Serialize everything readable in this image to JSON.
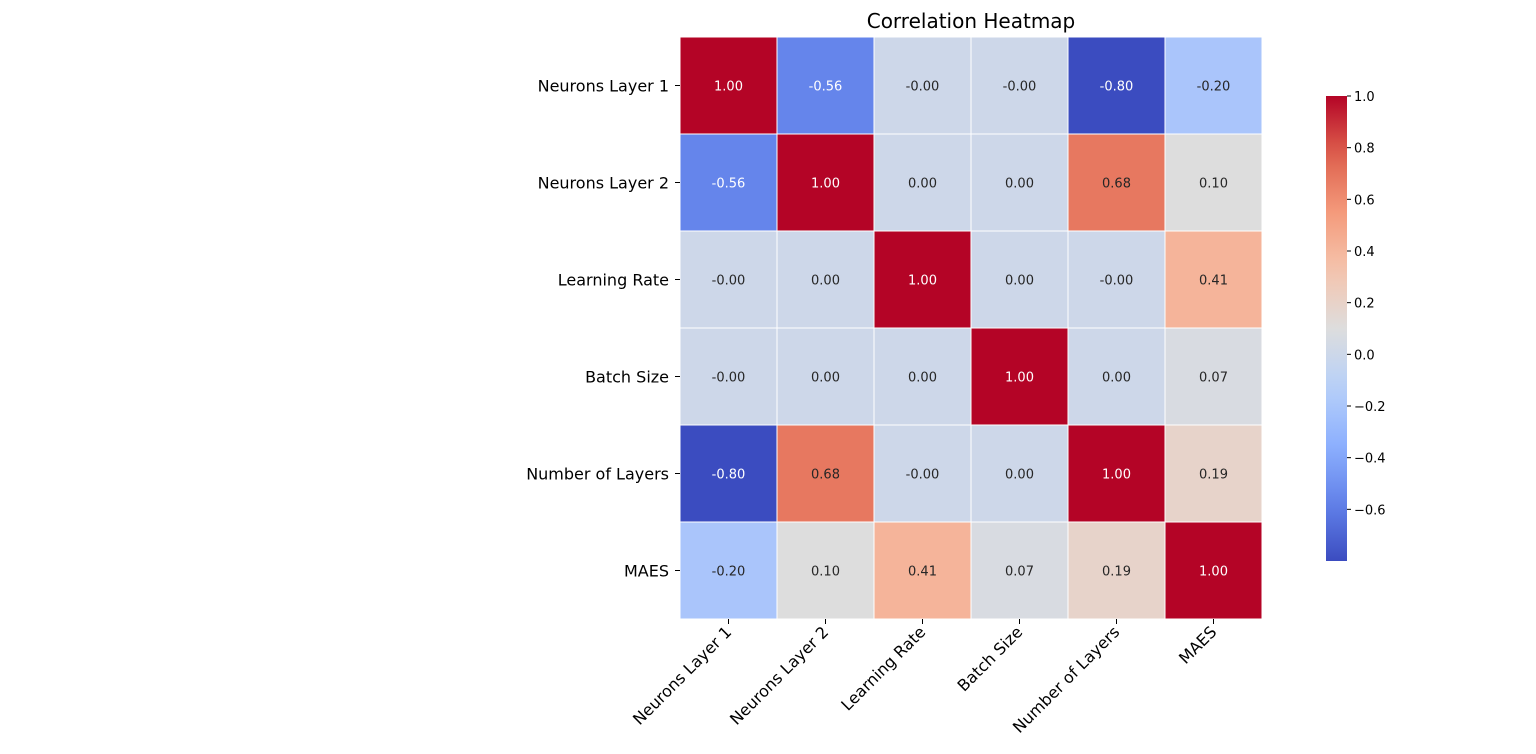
{
  "chart_data": {
    "type": "heatmap",
    "title": "Correlation Heatmap",
    "x_labels": [
      "Neurons Layer 1",
      "Neurons Layer 2",
      "Learning Rate",
      "Batch Size",
      "Number of Layers",
      "MAES"
    ],
    "y_labels": [
      "Neurons Layer 1",
      "Neurons Layer 2",
      "Learning Rate",
      "Batch Size",
      "Number of Layers",
      "MAES"
    ],
    "values": [
      [
        1.0,
        -0.56,
        -0.0,
        -0.0,
        -0.8,
        -0.2
      ],
      [
        -0.56,
        1.0,
        0.0,
        0.0,
        0.68,
        0.1
      ],
      [
        -0.0,
        0.0,
        1.0,
        0.0,
        -0.0,
        0.41
      ],
      [
        -0.0,
        0.0,
        0.0,
        1.0,
        0.0,
        0.07
      ],
      [
        -0.8,
        0.68,
        -0.0,
        0.0,
        1.0,
        0.19
      ],
      [
        -0.2,
        0.1,
        0.41,
        0.07,
        0.19,
        1.0
      ]
    ],
    "cell_labels": [
      [
        "1.00",
        "-0.56",
        "-0.00",
        "-0.00",
        "-0.80",
        "-0.20"
      ],
      [
        "-0.56",
        "1.00",
        "0.00",
        "0.00",
        "0.68",
        "0.10"
      ],
      [
        "-0.00",
        "0.00",
        "1.00",
        "0.00",
        "-0.00",
        "0.41"
      ],
      [
        "-0.00",
        "0.00",
        "0.00",
        "1.00",
        "0.00",
        "0.07"
      ],
      [
        "-0.80",
        "0.68",
        "-0.00",
        "0.00",
        "1.00",
        "0.19"
      ],
      [
        "-0.20",
        "0.10",
        "0.41",
        "0.07",
        "0.19",
        "1.00"
      ]
    ],
    "colormap": "coolwarm",
    "color_range": [
      -0.8,
      1.0
    ],
    "colorbar": {
      "position": "right",
      "range": [
        -0.8,
        1.0
      ],
      "ticks": [
        1.0,
        0.8,
        0.6,
        0.4,
        0.2,
        0.0,
        -0.2,
        -0.4,
        -0.6
      ],
      "tick_labels": [
        "1.0",
        "0.8",
        "0.6",
        "0.4",
        "0.2",
        "0.0",
        "−0.2",
        "−0.4",
        "−0.6"
      ]
    },
    "grid_lines": "white",
    "x_tick_rotation": "45° right-aligned"
  }
}
